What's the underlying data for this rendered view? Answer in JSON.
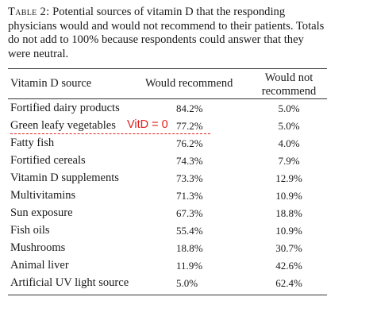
{
  "caption": {
    "label": "Table 2:",
    "text": "Potential sources of vitamin D that the responding physicians would and would not recommend to their patients. Totals do not add to 100% because respondents could answer that they were neutral."
  },
  "table": {
    "headers": {
      "source": "Vitamin D source",
      "recommend": "Would recommend",
      "not_recommend_line1": "Would not",
      "not_recommend_line2": "recommend"
    },
    "rows": [
      {
        "source": "Fortified dairy products",
        "recommend": "84.2%",
        "not_recommend": "5.0%"
      },
      {
        "source": "Green leafy vegetables",
        "recommend": "77.2%",
        "not_recommend": "5.0%",
        "annotation": "VitD = 0"
      },
      {
        "source": "Fatty fish",
        "recommend": "76.2%",
        "not_recommend": "4.0%"
      },
      {
        "source": "Fortified cereals",
        "recommend": "74.3%",
        "not_recommend": "7.9%"
      },
      {
        "source": "Vitamin D supplements",
        "recommend": "73.3%",
        "not_recommend": "12.9%"
      },
      {
        "source": "Multivitamins",
        "recommend": "71.3%",
        "not_recommend": "10.9%"
      },
      {
        "source": "Sun exposure",
        "recommend": "67.3%",
        "not_recommend": "18.8%"
      },
      {
        "source": "Fish oils",
        "recommend": "55.4%",
        "not_recommend": "10.9%"
      },
      {
        "source": "Mushrooms",
        "recommend": "18.8%",
        "not_recommend": "30.7%"
      },
      {
        "source": "Animal liver",
        "recommend": "11.9%",
        "not_recommend": "42.6%"
      },
      {
        "source": "Artificial UV light source",
        "recommend": "5.0%",
        "not_recommend": "62.4%"
      }
    ]
  },
  "colors": {
    "annotation": "#e0201c",
    "text": "#1a1a1a"
  }
}
